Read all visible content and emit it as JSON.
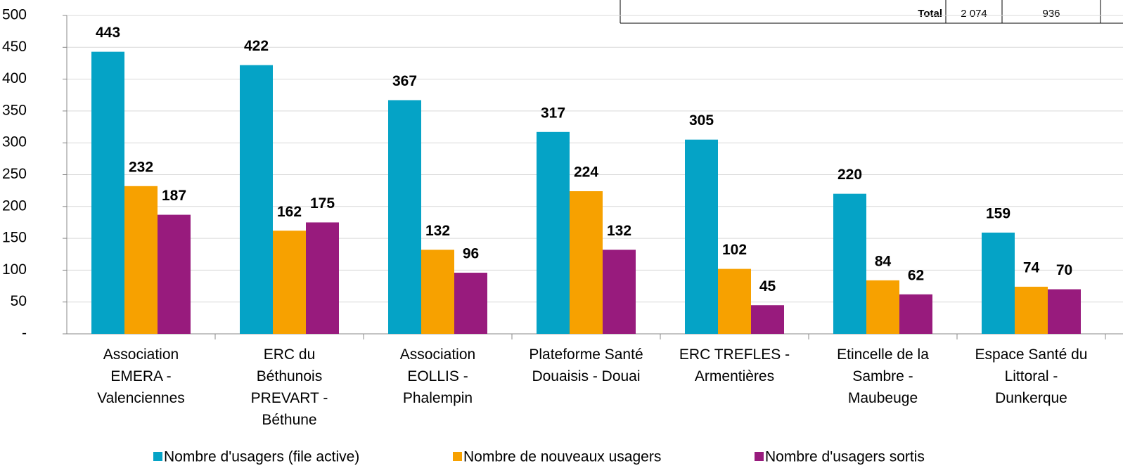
{
  "chart_data": {
    "type": "bar",
    "categories": [
      "Association\nEMERA -\nValenciennes",
      "ERC du\nBéthunois\nPREVART  -\nBéthune",
      "Association\nEOLLIS -\nPhalempin",
      "Plateforme Santé\nDouaisis - Douai",
      "ERC TREFLES -\nArmentières",
      "Etincelle de la\nSambre -\nMaubeuge",
      "Espace Santé du\nLittoral -\nDunkerque"
    ],
    "series": [
      {
        "name": "Nombre d'usagers (file active)",
        "color": "#05a3c6",
        "values": [
          443,
          422,
          367,
          317,
          305,
          220,
          159
        ]
      },
      {
        "name": "Nombre de nouveaux usagers",
        "color": "#f7a100",
        "values": [
          232,
          162,
          132,
          224,
          102,
          84,
          74
        ]
      },
      {
        "name": "Nombre d'usagers sortis",
        "color": "#981b7d",
        "values": [
          187,
          175,
          96,
          132,
          45,
          62,
          70
        ]
      }
    ],
    "ylim": [
      0,
      500
    ],
    "yticks": [
      {
        "value": 0,
        "label": "-"
      },
      50,
      100,
      150,
      200,
      250,
      300,
      350,
      400,
      450,
      500
    ],
    "grid": true,
    "legend": "bottom",
    "annotations": [
      "Total",
      "2 074",
      "936"
    ]
  }
}
